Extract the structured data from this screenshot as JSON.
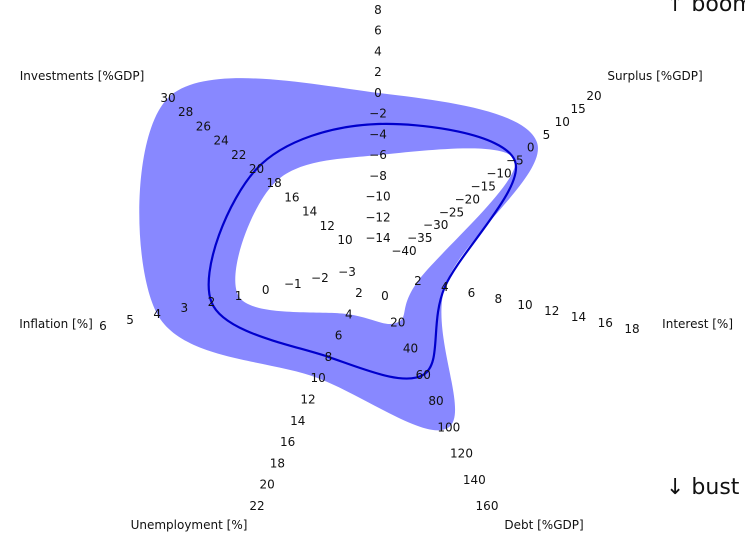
{
  "chart_data": {
    "type": "radar",
    "annotations": {
      "top": "↑ boom",
      "bottom": "↓ bust"
    },
    "axes": [
      {
        "id": "debt",
        "label": "Debt [%GDP]",
        "ticks": [
          "0",
          "20",
          "40",
          "60",
          "80",
          "100",
          "120",
          "140",
          "160"
        ]
      },
      {
        "id": "interest",
        "label": "Interest [%]",
        "ticks": [
          "2",
          "4",
          "6",
          "8",
          "10",
          "12",
          "14",
          "16",
          "18"
        ]
      },
      {
        "id": "surplus",
        "label": "Surplus [%GDP]",
        "ticks": [
          "−40",
          "−35",
          "−30",
          "−25",
          "−20",
          "−15",
          "−10",
          "−5",
          "0",
          "5",
          "10",
          "15",
          "20"
        ]
      },
      {
        "id": "top",
        "label": "",
        "ticks": [
          "−14",
          "−12",
          "−10",
          "−8",
          "−6",
          "−4",
          "−2",
          "0",
          "2",
          "4",
          "6",
          "8"
        ]
      },
      {
        "id": "investments",
        "label": "Investments [%GDP]",
        "ticks": [
          "10",
          "12",
          "14",
          "16",
          "18",
          "20",
          "22",
          "24",
          "26",
          "28",
          "30"
        ]
      },
      {
        "id": "inflation",
        "label": "Inflation [%]",
        "ticks": [
          "−3",
          "−2",
          "−1",
          "0",
          "1",
          "2",
          "3",
          "4",
          "5",
          "6"
        ]
      },
      {
        "id": "unemployment",
        "label": "Unemployment [%]",
        "ticks": [
          "2",
          "4",
          "6",
          "8",
          "10",
          "12",
          "14",
          "16",
          "18",
          "20",
          "22"
        ]
      }
    ],
    "band": {
      "outer": {
        "debt": "100",
        "interest": "4",
        "surplus": "2",
        "top": "0",
        "investments": "30",
        "inflation": "4",
        "unemployment": "10"
      },
      "inner": {
        "debt": "20",
        "interest": "2",
        "surplus": "−5",
        "top": "−6",
        "investments": "18",
        "inflation": "1",
        "unemployment": "4"
      }
    },
    "line": {
      "debt": "60",
      "interest": "4",
      "surplus": "−5",
      "top": "−3",
      "investments": "20",
      "inflation": "2",
      "unemployment": "8"
    },
    "colors": {
      "band": "#8888ff",
      "line": "#0000cc"
    }
  }
}
